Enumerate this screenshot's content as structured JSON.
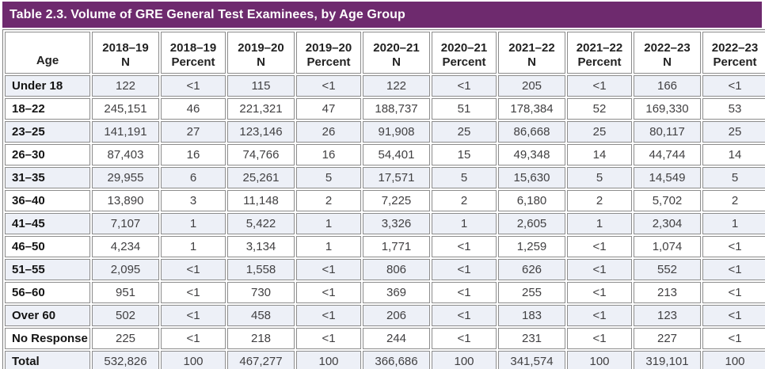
{
  "title": "Table 2.3. Volume of GRE General Test Examinees, by Age Group",
  "colors": {
    "title_bar_background": "#6e2a6e",
    "title_text": "#ffffff",
    "stripe_row_background": "#edf0f7",
    "grid_border": "#8c8c8c"
  },
  "table": {
    "row_header_label": "Age",
    "columns": [
      {
        "year": "2018–19",
        "metric": "N"
      },
      {
        "year": "2018–19",
        "metric": "Percent"
      },
      {
        "year": "2019–20",
        "metric": "N"
      },
      {
        "year": "2019–20",
        "metric": "Percent"
      },
      {
        "year": "2020–21",
        "metric": "N"
      },
      {
        "year": "2020–21",
        "metric": "Percent"
      },
      {
        "year": "2021–22",
        "metric": "N"
      },
      {
        "year": "2021–22",
        "metric": "Percent"
      },
      {
        "year": "2022–23",
        "metric": "N"
      },
      {
        "year": "2022–23",
        "metric": "Percent"
      }
    ],
    "rows": [
      {
        "age": "Under 18",
        "values": [
          "122",
          "<1",
          "115",
          "<1",
          "122",
          "<1",
          "205",
          "<1",
          "166",
          "<1"
        ]
      },
      {
        "age": "18–22",
        "values": [
          "245,151",
          "46",
          "221,321",
          "47",
          "188,737",
          "51",
          "178,384",
          "52",
          "169,330",
          "53"
        ]
      },
      {
        "age": "23–25",
        "values": [
          "141,191",
          "27",
          "123,146",
          "26",
          "91,908",
          "25",
          "86,668",
          "25",
          "80,117",
          "25"
        ]
      },
      {
        "age": "26–30",
        "values": [
          "87,403",
          "16",
          "74,766",
          "16",
          "54,401",
          "15",
          "49,348",
          "14",
          "44,744",
          "14"
        ]
      },
      {
        "age": "31–35",
        "values": [
          "29,955",
          "6",
          "25,261",
          "5",
          "17,571",
          "5",
          "15,630",
          "5",
          "14,549",
          "5"
        ]
      },
      {
        "age": "36–40",
        "values": [
          "13,890",
          "3",
          "11,148",
          "2",
          "7,225",
          "2",
          "6,180",
          "2",
          "5,702",
          "2"
        ]
      },
      {
        "age": "41–45",
        "values": [
          "7,107",
          "1",
          "5,422",
          "1",
          "3,326",
          "1",
          "2,605",
          "1",
          "2,304",
          "1"
        ]
      },
      {
        "age": "46–50",
        "values": [
          "4,234",
          "1",
          "3,134",
          "1",
          "1,771",
          "<1",
          "1,259",
          "<1",
          "1,074",
          "<1"
        ]
      },
      {
        "age": "51–55",
        "values": [
          "2,095",
          "<1",
          "1,558",
          "<1",
          "806",
          "<1",
          "626",
          "<1",
          "552",
          "<1"
        ]
      },
      {
        "age": "56–60",
        "values": [
          "951",
          "<1",
          "730",
          "<1",
          "369",
          "<1",
          "255",
          "<1",
          "213",
          "<1"
        ]
      },
      {
        "age": "Over 60",
        "values": [
          "502",
          "<1",
          "458",
          "<1",
          "206",
          "<1",
          "183",
          "<1",
          "123",
          "<1"
        ]
      },
      {
        "age": "No Response",
        "values": [
          "225",
          "<1",
          "218",
          "<1",
          "244",
          "<1",
          "231",
          "<1",
          "227",
          "<1"
        ]
      },
      {
        "age": "Total",
        "values": [
          "532,826",
          "100",
          "467,277",
          "100",
          "366,686",
          "100",
          "341,574",
          "100",
          "319,101",
          "100"
        ]
      }
    ]
  }
}
